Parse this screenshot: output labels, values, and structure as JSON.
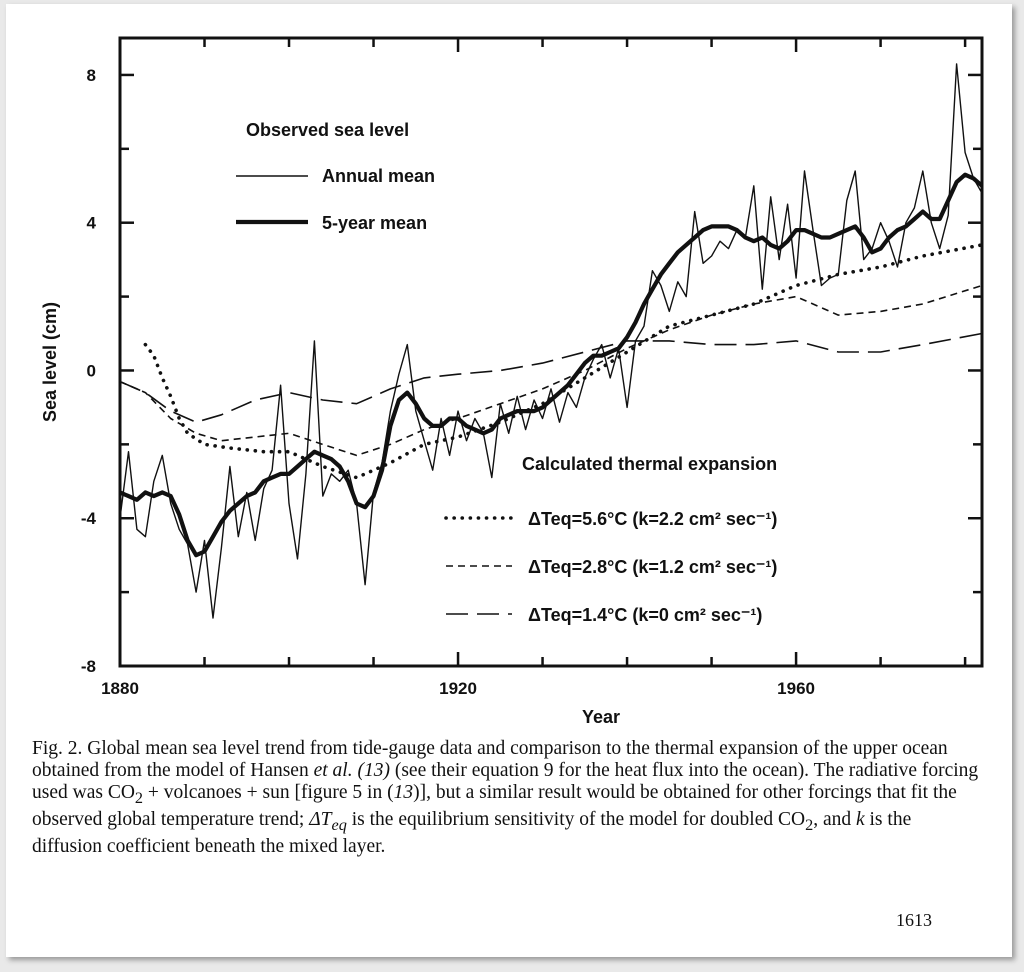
{
  "chart_data": {
    "type": "line",
    "xlabel": "Year",
    "ylabel": "Sea level (cm)",
    "xlim": [
      1880,
      1982
    ],
    "ylim": [
      -8,
      9
    ],
    "x_ticks": [
      1880,
      1920,
      1960
    ],
    "y_ticks": [
      -8,
      -4,
      0,
      4,
      8
    ],
    "legend_groups": [
      {
        "heading": "Observed sea level",
        "entries": [
          "Annual mean",
          "5-year mean"
        ]
      },
      {
        "heading": "Calculated thermal expansion",
        "entries": [
          "ΔTeq=5.6°C (k=2.2 cm² sec⁻¹)",
          "ΔTeq=2.8°C (k=1.2 cm² sec⁻¹)",
          "ΔTeq=1.4°C (k=0 cm² sec⁻¹)"
        ]
      }
    ],
    "series": [
      {
        "name": "Annual mean",
        "style": "thin-solid",
        "x": [
          1880,
          1881,
          1882,
          1883,
          1884,
          1885,
          1886,
          1887,
          1888,
          1889,
          1890,
          1891,
          1892,
          1893,
          1894,
          1895,
          1896,
          1897,
          1898,
          1899,
          1900,
          1901,
          1902,
          1903,
          1904,
          1905,
          1906,
          1907,
          1908,
          1909,
          1910,
          1911,
          1912,
          1913,
          1914,
          1915,
          1916,
          1917,
          1918,
          1919,
          1920,
          1921,
          1922,
          1923,
          1924,
          1925,
          1926,
          1927,
          1928,
          1929,
          1930,
          1931,
          1932,
          1933,
          1934,
          1935,
          1936,
          1937,
          1938,
          1939,
          1940,
          1941,
          1942,
          1943,
          1944,
          1945,
          1946,
          1947,
          1948,
          1949,
          1950,
          1951,
          1952,
          1953,
          1954,
          1955,
          1956,
          1957,
          1958,
          1959,
          1960,
          1961,
          1962,
          1963,
          1964,
          1965,
          1966,
          1967,
          1968,
          1969,
          1970,
          1971,
          1972,
          1973,
          1974,
          1975,
          1976,
          1977,
          1978,
          1979,
          1980,
          1981,
          1982
        ],
        "values": [
          -4.0,
          -2.2,
          -4.3,
          -4.5,
          -3.0,
          -2.3,
          -3.6,
          -4.3,
          -4.7,
          -6.0,
          -4.6,
          -6.7,
          -4.8,
          -2.6,
          -4.5,
          -3.3,
          -4.6,
          -3.2,
          -2.7,
          -0.4,
          -3.6,
          -5.1,
          -2.8,
          0.8,
          -3.4,
          -2.8,
          -3.0,
          -2.7,
          -3.6,
          -5.8,
          -3.3,
          -2.5,
          -1.1,
          -0.1,
          0.7,
          -1.1,
          -1.9,
          -2.7,
          -1.3,
          -2.3,
          -1.1,
          -1.9,
          -1.3,
          -1.7,
          -2.9,
          -0.9,
          -1.7,
          -0.7,
          -1.6,
          -0.8,
          -1.3,
          -0.5,
          -1.4,
          -0.6,
          -1.0,
          -0.2,
          0.3,
          0.7,
          -0.2,
          0.6,
          -1.0,
          0.8,
          1.2,
          2.7,
          2.3,
          1.6,
          2.4,
          2.0,
          4.3,
          2.9,
          3.1,
          3.5,
          3.3,
          3.8,
          3.6,
          5.0,
          2.2,
          4.7,
          3.0,
          4.5,
          2.5,
          5.4,
          3.8,
          2.3,
          2.5,
          2.6,
          4.6,
          5.4,
          3.0,
          3.3,
          4.0,
          3.5,
          2.8,
          4.0,
          4.4,
          5.4,
          4.0,
          3.3,
          4.2,
          8.3,
          5.9,
          5.2,
          4.8
        ]
      },
      {
        "name": "5-year mean",
        "style": "thick-solid",
        "x": [
          1880,
          1881,
          1882,
          1883,
          1884,
          1885,
          1886,
          1887,
          1888,
          1889,
          1890,
          1891,
          1892,
          1893,
          1894,
          1895,
          1896,
          1897,
          1898,
          1899,
          1900,
          1901,
          1902,
          1903,
          1904,
          1905,
          1906,
          1907,
          1908,
          1909,
          1910,
          1911,
          1912,
          1913,
          1914,
          1915,
          1916,
          1917,
          1918,
          1919,
          1920,
          1921,
          1922,
          1923,
          1924,
          1925,
          1926,
          1927,
          1928,
          1929,
          1930,
          1931,
          1932,
          1933,
          1934,
          1935,
          1936,
          1937,
          1938,
          1939,
          1940,
          1941,
          1942,
          1943,
          1944,
          1945,
          1946,
          1947,
          1948,
          1949,
          1950,
          1951,
          1952,
          1953,
          1954,
          1955,
          1956,
          1957,
          1958,
          1959,
          1960,
          1961,
          1962,
          1963,
          1964,
          1965,
          1966,
          1967,
          1968,
          1969,
          1970,
          1971,
          1972,
          1973,
          1974,
          1975,
          1976,
          1977,
          1978,
          1979,
          1980,
          1981,
          1982
        ],
        "values": [
          -3.3,
          -3.4,
          -3.5,
          -3.3,
          -3.4,
          -3.3,
          -3.4,
          -3.9,
          -4.6,
          -5.0,
          -4.9,
          -4.5,
          -4.1,
          -3.8,
          -3.6,
          -3.4,
          -3.3,
          -3.0,
          -2.9,
          -2.8,
          -2.8,
          -2.6,
          -2.4,
          -2.2,
          -2.3,
          -2.4,
          -2.6,
          -3.0,
          -3.6,
          -3.7,
          -3.4,
          -2.7,
          -1.5,
          -0.8,
          -0.6,
          -0.9,
          -1.3,
          -1.5,
          -1.5,
          -1.3,
          -1.3,
          -1.5,
          -1.6,
          -1.7,
          -1.6,
          -1.3,
          -1.2,
          -1.1,
          -1.1,
          -1.1,
          -1.0,
          -0.8,
          -0.6,
          -0.4,
          -0.1,
          0.2,
          0.4,
          0.4,
          0.5,
          0.6,
          0.9,
          1.3,
          1.8,
          2.2,
          2.6,
          2.9,
          3.2,
          3.4,
          3.6,
          3.8,
          3.9,
          3.9,
          3.9,
          3.8,
          3.6,
          3.5,
          3.6,
          3.4,
          3.3,
          3.5,
          3.8,
          3.8,
          3.7,
          3.6,
          3.6,
          3.7,
          3.8,
          3.9,
          3.6,
          3.2,
          3.3,
          3.6,
          3.8,
          3.9,
          4.1,
          4.3,
          4.1,
          4.1,
          4.6,
          5.1,
          5.3,
          5.2,
          5.0
        ]
      },
      {
        "name": "ΔTeq=5.6°C (k=2.2 cm² sec⁻¹)",
        "style": "dotted",
        "x": [
          1883,
          1884,
          1885,
          1886,
          1887,
          1888,
          1890,
          1893,
          1897,
          1900,
          1904,
          1908,
          1912,
          1916,
          1920,
          1925,
          1930,
          1935,
          1940,
          1945,
          1950,
          1955,
          1960,
          1965,
          1970,
          1975,
          1982
        ],
        "values": [
          0.7,
          0.4,
          -0.2,
          -0.7,
          -1.3,
          -1.7,
          -2.0,
          -2.1,
          -2.2,
          -2.2,
          -2.6,
          -2.9,
          -2.5,
          -2.0,
          -1.8,
          -1.4,
          -0.9,
          -0.2,
          0.5,
          1.2,
          1.5,
          1.8,
          2.3,
          2.6,
          2.8,
          3.1,
          3.4
        ]
      },
      {
        "name": "ΔTeq=2.8°C (k=1.2 cm² sec⁻¹)",
        "style": "short-dash",
        "x": [
          1880,
          1883,
          1886,
          1889,
          1892,
          1896,
          1900,
          1904,
          1908,
          1912,
          1916,
          1920,
          1925,
          1930,
          1935,
          1940,
          1945,
          1950,
          1955,
          1960,
          1965,
          1970,
          1975,
          1982
        ],
        "values": [
          -0.3,
          -0.6,
          -1.3,
          -1.7,
          -1.9,
          -1.8,
          -1.7,
          -2.0,
          -2.3,
          -2.0,
          -1.6,
          -1.3,
          -0.9,
          -0.5,
          0.0,
          0.6,
          1.1,
          1.5,
          1.8,
          2.0,
          1.5,
          1.6,
          1.8,
          2.3
        ]
      },
      {
        "name": "ΔTeq=1.4°C (k=0 cm² sec⁻¹)",
        "style": "long-dash",
        "x": [
          1880,
          1883,
          1886,
          1889,
          1892,
          1896,
          1900,
          1904,
          1908,
          1912,
          1916,
          1920,
          1925,
          1930,
          1935,
          1940,
          1945,
          1950,
          1955,
          1960,
          1965,
          1970,
          1975,
          1982
        ],
        "values": [
          -0.3,
          -0.6,
          -1.1,
          -1.4,
          -1.2,
          -0.8,
          -0.6,
          -0.8,
          -0.9,
          -0.5,
          -0.2,
          -0.1,
          0.0,
          0.2,
          0.5,
          0.8,
          0.8,
          0.7,
          0.7,
          0.8,
          0.5,
          0.5,
          0.7,
          1.0
        ]
      }
    ]
  },
  "caption": {
    "lead": "Fig. 2. Global mean sea level trend from tide-gauge data and comparison to the thermal expansion of the upper ocean obtained from the model of Hansen ",
    "etal": "et al.",
    "ref13": "(13)",
    "mid": " (see their equation 9 for the heat flux into the ocean). The radiative forcing used was CO",
    "plus": " + volcanoes + sun [figure 5 in (",
    "ref13b": "13",
    "rest": ")], but a similar result would be obtained for other forcings that fit the observed global temperature trend; ",
    "delta": "ΔT",
    "eq": "eq",
    "after_delta": " is the equilibrium sensitivity of the model for doubled CO",
    "k_intro": ", and ",
    "k": "k",
    "end": " is the diffusion coefficient beneath the mixed layer.",
    "sub2": "2"
  },
  "page_number": "1613"
}
